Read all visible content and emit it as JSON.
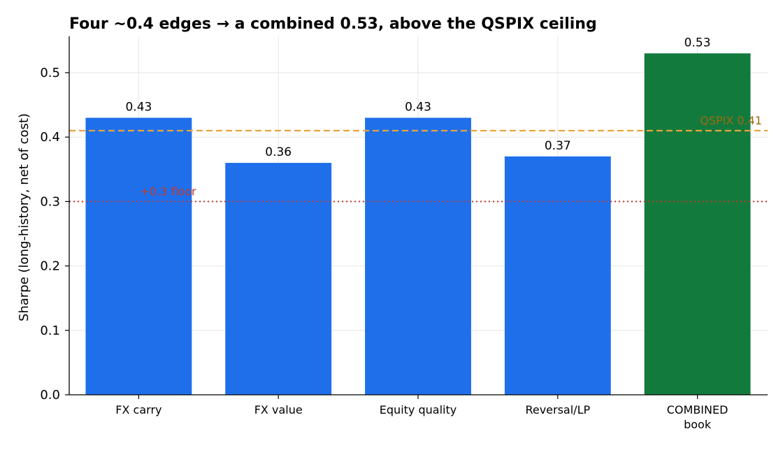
{
  "chart_data": {
    "type": "bar",
    "title": "Four ~0.4 edges → a combined 0.53, above the QSPIX ceiling",
    "xlabel": "",
    "ylabel": "Sharpe (long-history, net of cost)",
    "ylim": [
      0,
      0.56
    ],
    "yticks": [
      0.0,
      0.1,
      0.2,
      0.3,
      0.4,
      0.5
    ],
    "ytick_labels": [
      "0.0",
      "0.1",
      "0.2",
      "0.3",
      "0.4",
      "0.5"
    ],
    "grid": true,
    "categories": [
      "FX carry",
      "FX value",
      "Equity quality",
      "Reversal/LP",
      "COMBINED\nbook"
    ],
    "values": [
      0.43,
      0.36,
      0.43,
      0.37,
      0.53
    ],
    "value_labels": [
      "0.43",
      "0.36",
      "0.43",
      "0.37",
      "0.53"
    ],
    "bar_colors": [
      "#1f6feb",
      "#1f6feb",
      "#1f6feb",
      "#1f6feb",
      "#137a3d"
    ],
    "reference_lines": [
      {
        "value": 0.41,
        "label": "QSPIX 0.41",
        "style": "dashed",
        "color": "#e8a33d",
        "label_color": "#9c6a12",
        "label_position": "right"
      },
      {
        "value": 0.3,
        "label": "+0.3 floor",
        "style": "dotted",
        "color": "#c0392b",
        "label_color": "#c0392b",
        "label_position": "left"
      }
    ]
  }
}
